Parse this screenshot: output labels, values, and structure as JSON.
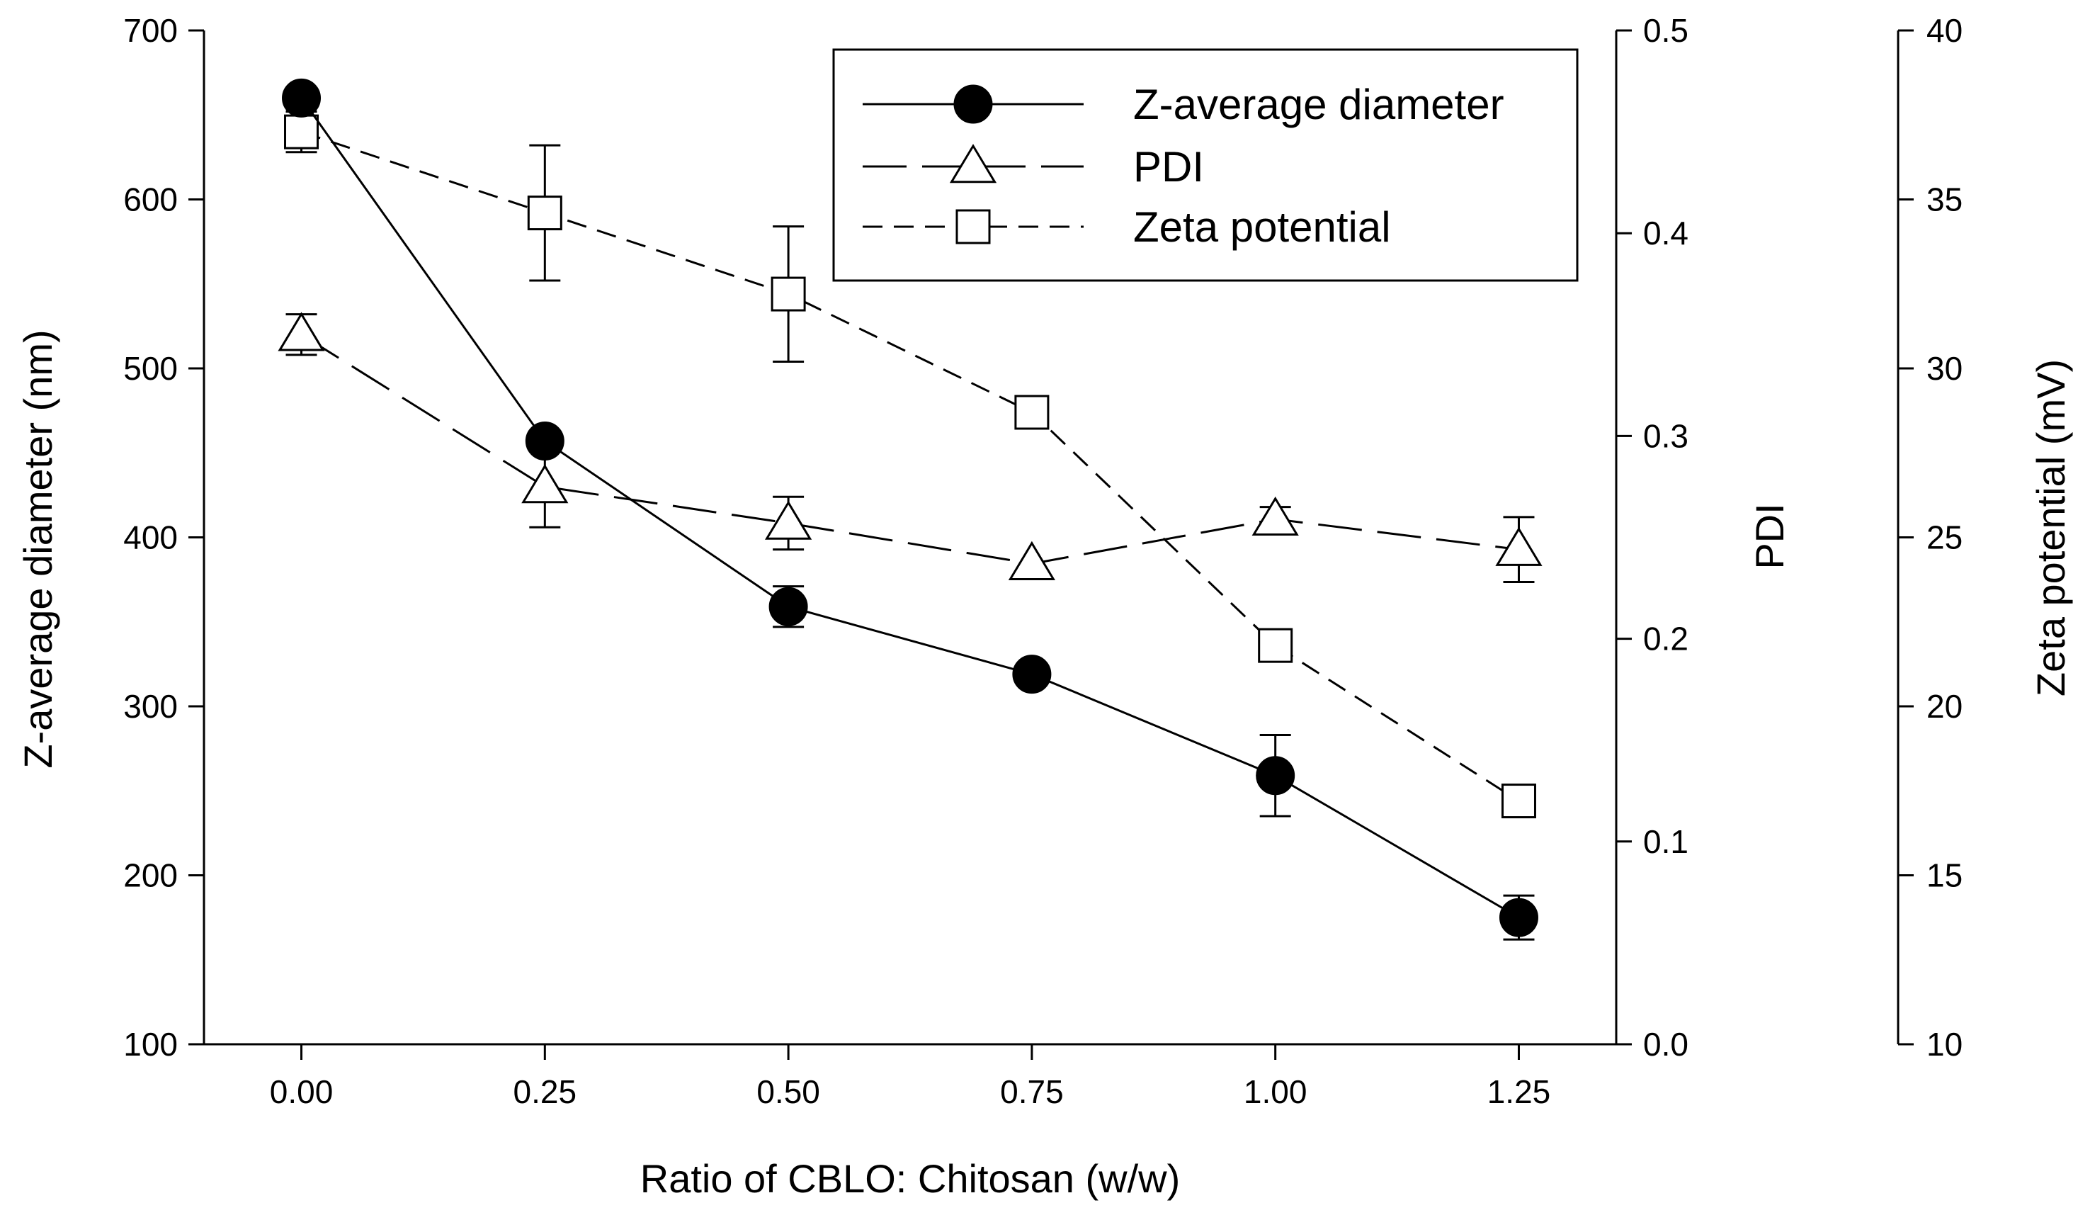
{
  "chart_data": {
    "type": "line",
    "title": "",
    "xlabel": "Ratio of CBLO: Chitosan (w/w)",
    "x": [
      0.0,
      0.25,
      0.5,
      0.75,
      1.0,
      1.25
    ],
    "x_tick_labels": [
      "0.00",
      "0.25",
      "0.50",
      "0.75",
      "1.00",
      "1.25"
    ],
    "xlim": [
      -0.1,
      1.35
    ],
    "axes": {
      "left": {
        "label": "Z-average diameter (nm)",
        "lim": [
          100,
          700
        ],
        "ticks": [
          "100",
          "200",
          "300",
          "400",
          "500",
          "600",
          "700"
        ]
      },
      "pdi": {
        "label": "PDI",
        "lim": [
          0.0,
          0.5
        ],
        "ticks": [
          "0.0",
          "0.1",
          "0.2",
          "0.3",
          "0.4",
          "0.5"
        ]
      },
      "zeta": {
        "label": "Zeta potential (mV)",
        "lim": [
          10,
          40
        ],
        "ticks": [
          "10",
          "15",
          "20",
          "25",
          "30",
          "35",
          "40"
        ]
      }
    },
    "series": [
      {
        "name": "Z-average diameter",
        "axis": "left",
        "marker": "filled-circle",
        "line": "solid",
        "values": [
          660,
          457,
          359,
          319,
          259,
          175
        ],
        "errors": [
          0,
          0,
          12,
          0,
          24,
          13
        ]
      },
      {
        "name": "PDI",
        "axis": "pdi",
        "marker": "open-triangle",
        "line": "long-dash",
        "values": [
          0.35,
          0.275,
          0.257,
          0.237,
          0.259,
          0.244
        ],
        "errors": [
          0.01,
          0.02,
          0.013,
          0.0,
          0.006,
          0.016
        ]
      },
      {
        "name": "Zeta potential",
        "axis": "zeta",
        "marker": "open-square",
        "line": "short-dash",
        "values": [
          37.0,
          34.6,
          32.2,
          28.7,
          21.8,
          17.2
        ],
        "errors": [
          0.6,
          2.0,
          2.0,
          0.0,
          0.0,
          0.0
        ]
      }
    ],
    "legend": {
      "position": "top-right"
    }
  }
}
